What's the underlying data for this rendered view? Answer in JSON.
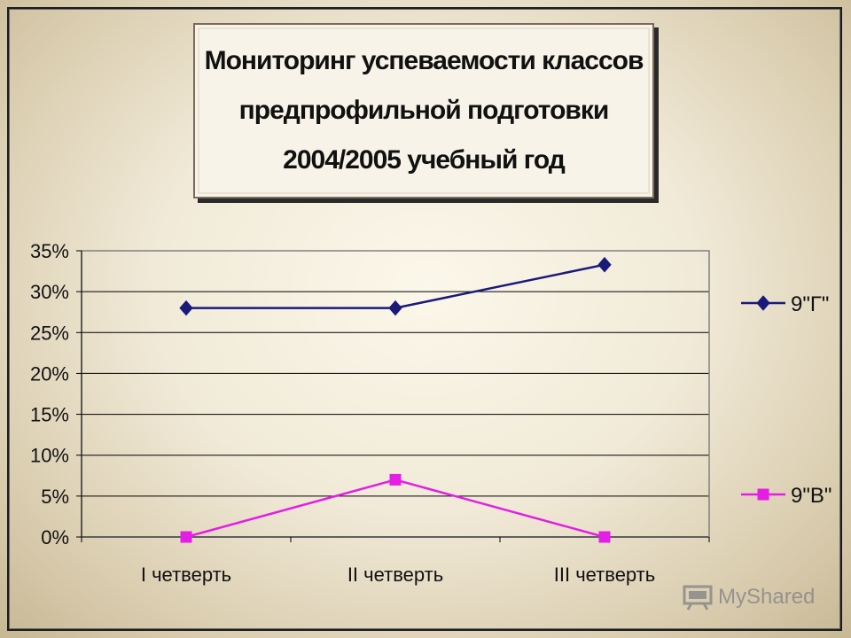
{
  "title_lines": [
    "Мониторинг успеваемости классов",
    "предпрофильной подготовки",
    "2004/2005 учебный год"
  ],
  "watermark": "MyShared",
  "colors": {
    "series_9g": "#1a1a7a",
    "series_9v": "#e41ee4",
    "plot_border": "#808080",
    "gridline": "#000000"
  },
  "chart_data": {
    "type": "line",
    "title": "Мониторинг успеваемости классов предпрофильной подготовки 2004/2005 учебный год",
    "categories": [
      "I четверть",
      "II четверть",
      "III четверть"
    ],
    "y_ticks": [
      "0%",
      "5%",
      "10%",
      "15%",
      "20%",
      "25%",
      "30%",
      "35%"
    ],
    "ylim": [
      0,
      35
    ],
    "grid": true,
    "legend_position": "right",
    "series": [
      {
        "name": "9\"Г\"",
        "marker": "diamond",
        "values": [
          28,
          28,
          33.3
        ]
      },
      {
        "name": "9\"В\"",
        "marker": "square",
        "values": [
          0,
          7,
          0
        ]
      }
    ]
  }
}
